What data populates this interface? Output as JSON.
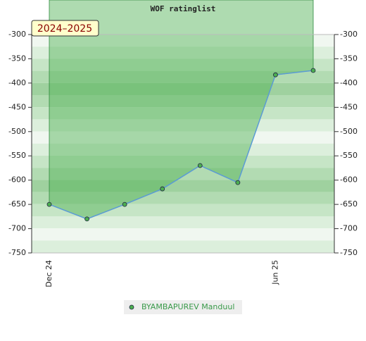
{
  "chart_data": {
    "type": "line",
    "title": "WOF ratinglist",
    "annotation": "2024–2025",
    "categories": [
      "Dec 24",
      null,
      null,
      null,
      null,
      null,
      "Jun 25",
      null
    ],
    "series": [
      {
        "name": "BYAMBAPUREV Manduul",
        "color": "#5b9bd5",
        "marker_color": "#4caf50",
        "values": [
          -650,
          -680,
          -650,
          -618,
          -570,
          -605,
          -383,
          -374
        ]
      }
    ],
    "ylim": [
      -750,
      -300
    ],
    "yticks": [
      -750,
      -700,
      -650,
      -600,
      -550,
      -500,
      -450,
      -400,
      -350,
      -300
    ],
    "fill_color": "#4caf50"
  }
}
